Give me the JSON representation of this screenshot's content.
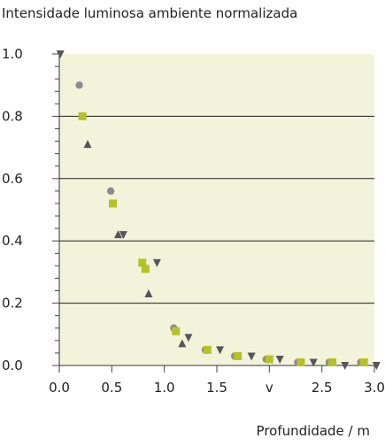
{
  "chart_data": {
    "type": "scatter",
    "title": "",
    "ylabel": "Intensidade luminosa ambiente normalizada",
    "xlabel": "Profundidade / m",
    "xlim": [
      0,
      3.0
    ],
    "ylim": [
      0,
      1.0
    ],
    "x_ticks": [
      "0.0",
      "0.5",
      "1.0",
      "1.5",
      "v",
      "2.5",
      "3.0"
    ],
    "y_ticks": [
      "0.0",
      "0.2",
      "0.4",
      "0.6",
      "0.8",
      "1.0"
    ],
    "grid": "horizontal",
    "plot_background": "#f3f3dc",
    "series": [
      {
        "marker": "circle",
        "color": "#8c8c8c",
        "points": [
          [
            0.19,
            0.9
          ],
          [
            0.49,
            0.56
          ],
          [
            1.09,
            0.12
          ],
          [
            1.39,
            0.05
          ],
          [
            1.67,
            0.03
          ],
          [
            1.97,
            0.02
          ],
          [
            2.27,
            0.01
          ],
          [
            2.57,
            0.01
          ],
          [
            2.87,
            0.01
          ]
        ]
      },
      {
        "marker": "square",
        "color": "#b5c226",
        "points": [
          [
            0.22,
            0.8
          ],
          [
            0.51,
            0.52
          ],
          [
            0.79,
            0.33
          ],
          [
            0.82,
            0.31
          ],
          [
            1.11,
            0.11
          ],
          [
            1.41,
            0.05
          ],
          [
            1.7,
            0.03
          ],
          [
            2.0,
            0.02
          ],
          [
            2.3,
            0.01
          ],
          [
            2.6,
            0.01
          ],
          [
            2.9,
            0.01
          ]
        ]
      },
      {
        "marker": "triangle-up",
        "color": "#555555",
        "points": [
          [
            0.27,
            0.71
          ],
          [
            0.56,
            0.42
          ],
          [
            0.85,
            0.23
          ],
          [
            1.17,
            0.07
          ]
        ]
      },
      {
        "marker": "triangle-down",
        "color": "#555555",
        "points": [
          [
            0.01,
            1.0
          ],
          [
            0.61,
            0.42
          ],
          [
            0.93,
            0.33
          ],
          [
            1.23,
            0.09
          ],
          [
            1.53,
            0.05
          ],
          [
            1.83,
            0.03
          ],
          [
            2.1,
            0.02
          ],
          [
            2.42,
            0.01
          ],
          [
            2.72,
            0.0
          ],
          [
            3.02,
            0.0
          ]
        ]
      }
    ]
  }
}
